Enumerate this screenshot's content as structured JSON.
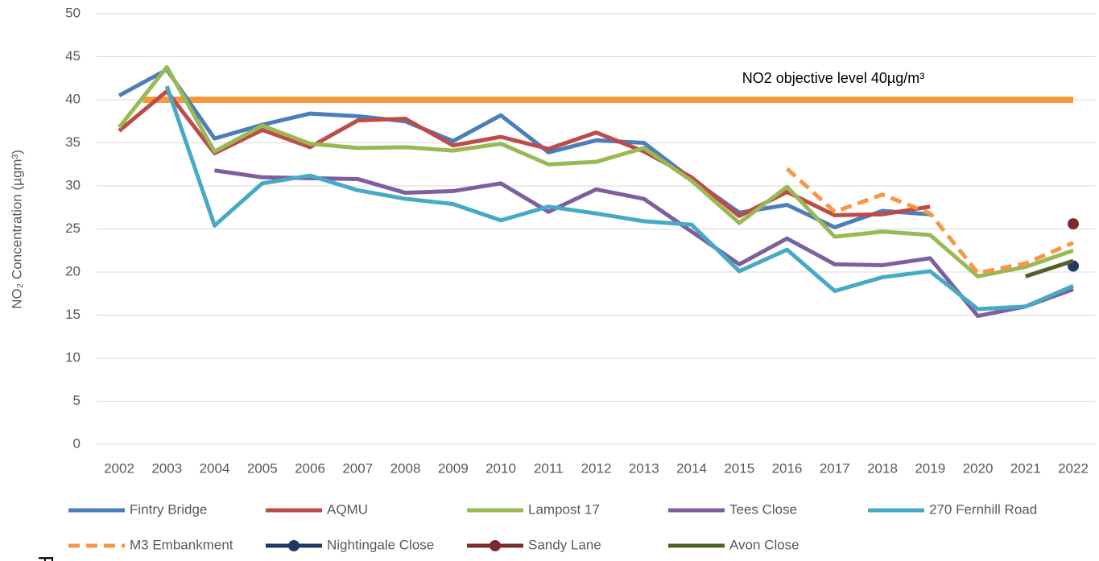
{
  "chart_data": {
    "type": "line",
    "y_axis_label": "NO₂ Concentration (µgm³)",
    "annotation": "NO2 objective level 40µg/m³",
    "objective_level": 40,
    "objective_color": "#f59a3c",
    "categories": [
      "2002",
      "2003",
      "2004",
      "2005",
      "2006",
      "2007",
      "2008",
      "2009",
      "2010",
      "2011",
      "2012",
      "2013",
      "2014",
      "2015",
      "2016",
      "2017",
      "2018",
      "2019",
      "2020",
      "2021",
      "2022"
    ],
    "ylim": [
      0,
      50
    ],
    "yticks": [
      0,
      5,
      10,
      15,
      20,
      25,
      30,
      35,
      40,
      45,
      50
    ],
    "grid": true,
    "series": [
      {
        "name": "Fintry Bridge",
        "color": "#4a7ebb",
        "values": [
          40.5,
          43.5,
          35.5,
          37.1,
          38.4,
          38.1,
          37.5,
          35.2,
          38.2,
          33.9,
          35.3,
          35.0,
          30.8,
          26.9,
          27.8,
          25.2,
          27.1,
          26.7,
          null,
          null,
          null
        ]
      },
      {
        "name": "AQMU",
        "color": "#be4b48",
        "values": [
          36.4,
          41.0,
          33.8,
          36.5,
          34.5,
          37.6,
          37.8,
          34.7,
          35.7,
          34.3,
          36.2,
          34.0,
          31.0,
          26.5,
          29.3,
          26.6,
          26.7,
          27.6,
          null,
          null,
          null
        ]
      },
      {
        "name": "Lampost 17",
        "color": "#98b954",
        "values": [
          36.8,
          43.8,
          34.0,
          37.0,
          34.9,
          34.4,
          34.5,
          34.1,
          34.9,
          32.5,
          32.8,
          34.4,
          30.6,
          25.7,
          29.9,
          24.1,
          24.7,
          24.3,
          19.5,
          20.6,
          22.5
        ]
      },
      {
        "name": "Tees Close",
        "color": "#7d5fa0",
        "values": [
          null,
          null,
          31.8,
          31.0,
          30.9,
          30.8,
          29.2,
          29.4,
          30.3,
          27.0,
          29.6,
          28.5,
          24.7,
          20.9,
          23.9,
          20.9,
          20.8,
          21.6,
          14.9,
          16.0,
          18.0
        ]
      },
      {
        "name": "270 Fernhill Road",
        "color": "#46aac5",
        "values": [
          null,
          41.6,
          25.4,
          30.3,
          31.2,
          29.5,
          28.5,
          27.9,
          26.0,
          27.6,
          26.8,
          25.9,
          25.5,
          20.1,
          22.6,
          17.8,
          19.4,
          20.1,
          15.7,
          16.0,
          18.4
        ]
      },
      {
        "name": "M3 Embankment",
        "color": "#f79646",
        "dashed": true,
        "values": [
          null,
          null,
          null,
          null,
          null,
          null,
          null,
          null,
          null,
          null,
          null,
          null,
          null,
          null,
          32.0,
          27.0,
          29.0,
          26.8,
          19.9,
          21.0,
          23.4
        ]
      },
      {
        "name": "Nightingale Close",
        "color": "#1f3864",
        "marker": true,
        "values": [
          null,
          null,
          null,
          null,
          null,
          null,
          null,
          null,
          null,
          null,
          null,
          null,
          null,
          null,
          null,
          null,
          null,
          null,
          null,
          null,
          20.7
        ]
      },
      {
        "name": "Sandy Lane",
        "color": "#7b2c2c",
        "marker": true,
        "values": [
          null,
          null,
          null,
          null,
          null,
          null,
          null,
          null,
          null,
          null,
          null,
          null,
          null,
          null,
          null,
          null,
          null,
          null,
          null,
          null,
          25.6
        ]
      },
      {
        "name": "Avon Close",
        "color": "#4f6228",
        "values": [
          null,
          null,
          null,
          null,
          null,
          null,
          null,
          null,
          null,
          null,
          null,
          null,
          null,
          null,
          null,
          null,
          null,
          null,
          null,
          19.5,
          21.3
        ]
      }
    ]
  },
  "footer_fragment": "P"
}
